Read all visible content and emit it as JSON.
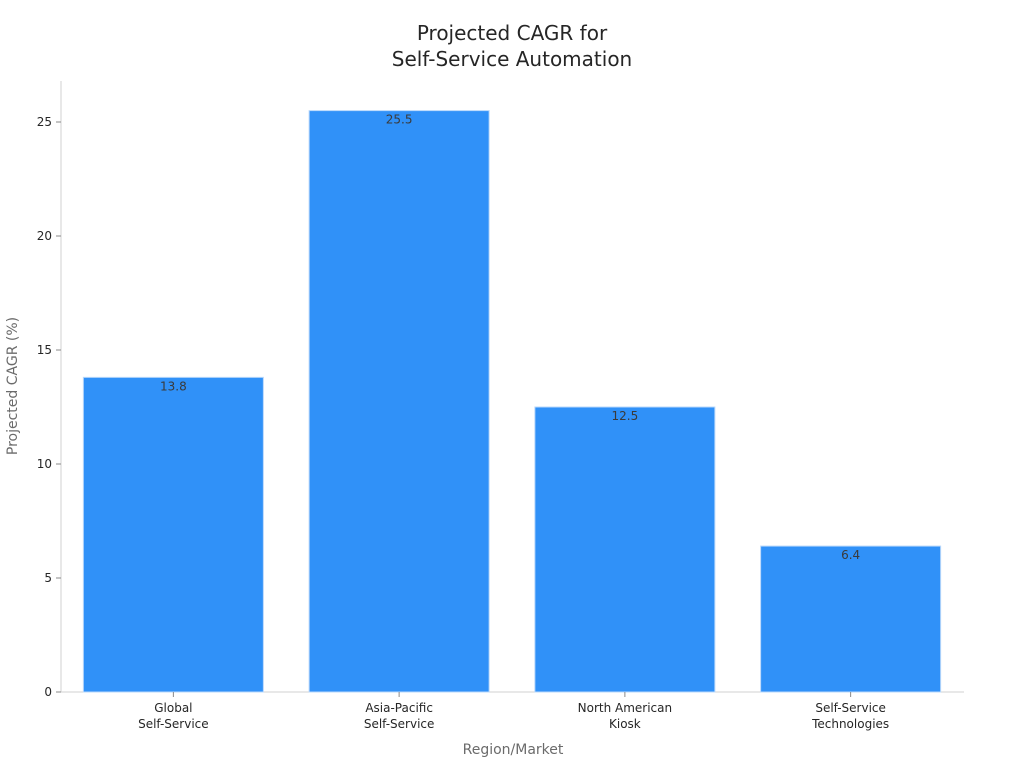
{
  "chart_data": {
    "type": "bar",
    "title": "Projected CAGR for Self-Service Automation",
    "title_lines": [
      "Projected CAGR for",
      "Self-Service Automation"
    ],
    "xlabel": "Region/Market",
    "ylabel": "Projected CAGR (%)",
    "categories": [
      "Global Self-Service",
      "Asia-Pacific Self-Service",
      "North American Kiosk",
      "Self-Service Technologies"
    ],
    "category_lines": [
      [
        "Global",
        "Self-Service"
      ],
      [
        "Asia-Pacific",
        "Self-Service"
      ],
      [
        "North American",
        "Kiosk"
      ],
      [
        "Self-Service",
        "Technologies"
      ]
    ],
    "values": [
      13.8,
      25.5,
      12.5,
      6.4
    ],
    "value_labels": [
      "13.8",
      "25.5",
      "12.5",
      "6.4"
    ],
    "ylim": [
      0,
      26.8
    ],
    "yticks": [
      0,
      5,
      10,
      15,
      20,
      25
    ],
    "grid": false,
    "legend": null,
    "bar_color": "#3091f8"
  }
}
